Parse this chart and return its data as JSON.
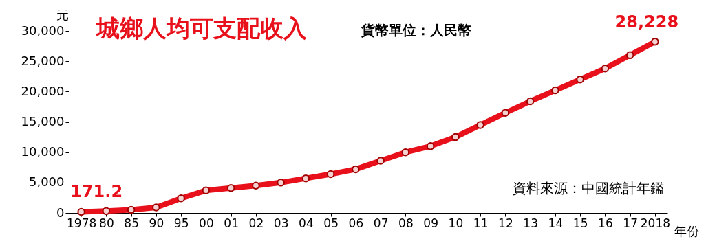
{
  "chart_data": {
    "type": "line",
    "title": "城鄉人均可支配收入",
    "subtitle": "貨幣單位：人民幣",
    "ylabel": "元",
    "xlabel": "年份",
    "annotations": [
      "資料來源：中國統計年鑑"
    ],
    "categories": [
      "1978",
      "80",
      "85",
      "90",
      "95",
      "00",
      "01",
      "02",
      "03",
      "04",
      "05",
      "06",
      "07",
      "08",
      "09",
      "10",
      "11",
      "12",
      "13",
      "14",
      "15",
      "16",
      "17",
      "2018"
    ],
    "series": [
      {
        "color": "#e8101a",
        "values": [
          171.2,
          300,
          500,
          900,
          2400,
          3700,
          4100,
          4500,
          5000,
          5700,
          6400,
          7200,
          8600,
          10000,
          11000,
          12500,
          14500,
          16500,
          18400,
          20200,
          22000,
          23800,
          26000,
          28228
        ],
        "value_labels": [
          "171.2",
          null,
          null,
          null,
          null,
          null,
          null,
          null,
          null,
          null,
          null,
          null,
          null,
          null,
          null,
          null,
          null,
          null,
          null,
          null,
          null,
          null,
          null,
          "28,228"
        ]
      }
    ],
    "ylim": [
      0,
      30000
    ],
    "yticks": [
      0,
      {
        "value": 5000,
        "label": "5,000"
      },
      {
        "value": 10000,
        "label": "10,000"
      },
      {
        "value": 15000,
        "label": "15,000"
      },
      {
        "value": 20000,
        "label": "20,000"
      },
      {
        "value": 25000,
        "label": "25,000"
      },
      {
        "value": 30000,
        "label": "30,000"
      }
    ],
    "grid": false,
    "marker": "circle",
    "line_style": "solid"
  }
}
